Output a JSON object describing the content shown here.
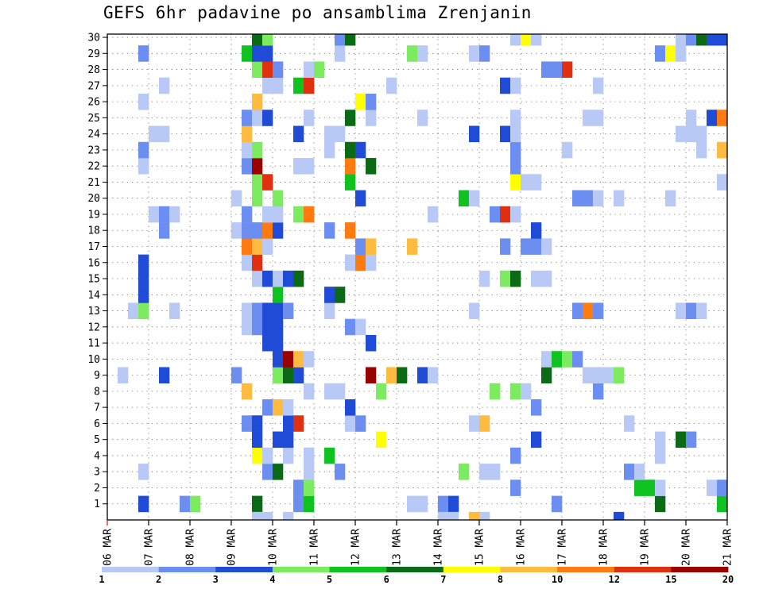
{
  "chart_data": {
    "type": "heatmap",
    "title": "GEFS 6hr padavine po ansamblima Zrenjanin",
    "x_tick_labels": [
      "06 MAR",
      "07 MAR",
      "08 MAR",
      "09 MAR",
      "10 MAR",
      "11 MAR",
      "12 MAR",
      "13 MAR",
      "14 MAR",
      "15 MAR",
      "16 MAR",
      "17 MAR",
      "18 MAR",
      "19 MAR",
      "20 MAR",
      "21 MAR"
    ],
    "y_tick_labels": [
      "1",
      "2",
      "3",
      "4",
      "5",
      "6",
      "7",
      "8",
      "9",
      "10",
      "11",
      "12",
      "13",
      "14",
      "15",
      "16",
      "17",
      "18",
      "19",
      "20",
      "21",
      "22",
      "23",
      "24",
      "25",
      "26",
      "27",
      "28",
      "29",
      "30"
    ],
    "xlim_days": [
      0,
      15
    ],
    "ylim_members": [
      0,
      30
    ],
    "grid": true,
    "colorbar": {
      "position": "bottom",
      "tick_labels": [
        "1",
        "2",
        "3",
        "4",
        "5",
        "6",
        "7",
        "8",
        "10",
        "12",
        "15",
        "20"
      ],
      "colors": [
        "#b8c9f5",
        "#6b8ef0",
        "#1f4bd6",
        "#7deb5f",
        "#0fc21f",
        "#0a6a16",
        "#ffff00",
        "#ffbb40",
        "#ff7a10",
        "#e03010",
        "#9b0000"
      ]
    },
    "cells": [
      [
        0.75,
        1,
        3
      ],
      [
        1.75,
        1,
        2
      ],
      [
        2.0,
        1,
        4
      ],
      [
        3.5,
        1,
        6
      ],
      [
        4.5,
        1,
        2
      ],
      [
        4.75,
        1,
        5
      ],
      [
        7.25,
        1,
        1
      ],
      [
        7.5,
        1,
        1
      ],
      [
        8.0,
        1,
        2
      ],
      [
        8.25,
        1,
        3
      ],
      [
        10.75,
        1,
        2
      ],
      [
        13.25,
        1,
        6
      ],
      [
        14.75,
        1,
        5
      ],
      [
        4.5,
        2,
        2
      ],
      [
        4.75,
        2,
        4
      ],
      [
        9.75,
        2,
        2
      ],
      [
        12.75,
        2,
        5
      ],
      [
        13.0,
        2,
        5
      ],
      [
        13.25,
        2,
        1
      ],
      [
        14.5,
        2,
        1
      ],
      [
        14.75,
        2,
        2
      ],
      [
        0.75,
        3,
        1
      ],
      [
        3.75,
        3,
        2
      ],
      [
        4.0,
        3,
        6
      ],
      [
        4.75,
        3,
        1
      ],
      [
        5.5,
        3,
        2
      ],
      [
        8.5,
        3,
        4
      ],
      [
        9.0,
        3,
        1
      ],
      [
        9.25,
        3,
        1
      ],
      [
        12.5,
        3,
        2
      ],
      [
        12.75,
        3,
        1
      ],
      [
        3.5,
        4,
        7
      ],
      [
        3.75,
        4,
        1
      ],
      [
        4.25,
        4,
        1
      ],
      [
        4.75,
        4,
        1
      ],
      [
        5.25,
        4,
        5
      ],
      [
        9.75,
        4,
        2
      ],
      [
        13.25,
        4,
        1
      ],
      [
        3.5,
        5,
        3
      ],
      [
        4.0,
        5,
        3
      ],
      [
        4.25,
        5,
        3
      ],
      [
        6.5,
        5,
        7
      ],
      [
        10.25,
        5,
        3
      ],
      [
        13.25,
        5,
        1
      ],
      [
        13.75,
        5,
        6
      ],
      [
        14.0,
        5,
        2
      ],
      [
        3.25,
        6,
        2
      ],
      [
        3.5,
        6,
        3
      ],
      [
        4.25,
        6,
        3
      ],
      [
        4.5,
        6,
        10
      ],
      [
        5.75,
        6,
        1
      ],
      [
        6.0,
        6,
        2
      ],
      [
        8.75,
        6,
        1
      ],
      [
        9.0,
        6,
        8
      ],
      [
        12.5,
        6,
        1
      ],
      [
        3.75,
        7,
        2
      ],
      [
        4.0,
        7,
        8
      ],
      [
        4.25,
        7,
        1
      ],
      [
        5.75,
        7,
        3
      ],
      [
        10.25,
        7,
        2
      ],
      [
        3.25,
        8,
        8
      ],
      [
        4.75,
        8,
        1
      ],
      [
        5.25,
        8,
        1
      ],
      [
        5.5,
        8,
        1
      ],
      [
        6.5,
        8,
        4
      ],
      [
        9.25,
        8,
        4
      ],
      [
        9.75,
        8,
        4
      ],
      [
        10.0,
        8,
        1
      ],
      [
        11.75,
        8,
        2
      ],
      [
        0.25,
        9,
        1
      ],
      [
        1.25,
        9,
        3
      ],
      [
        3.0,
        9,
        2
      ],
      [
        4.0,
        9,
        4
      ],
      [
        4.25,
        9,
        6
      ],
      [
        4.5,
        9,
        3
      ],
      [
        6.25,
        9,
        11
      ],
      [
        6.75,
        9,
        8
      ],
      [
        7.0,
        9,
        6
      ],
      [
        7.5,
        9,
        3
      ],
      [
        7.75,
        9,
        1
      ],
      [
        10.5,
        9,
        6
      ],
      [
        11.5,
        9,
        1
      ],
      [
        11.75,
        9,
        1
      ],
      [
        12.0,
        9,
        1
      ],
      [
        12.25,
        9,
        4
      ],
      [
        4.0,
        10,
        3
      ],
      [
        4.25,
        10,
        11
      ],
      [
        4.5,
        10,
        8
      ],
      [
        4.75,
        10,
        1
      ],
      [
        10.5,
        10,
        1
      ],
      [
        10.75,
        10,
        5
      ],
      [
        11.0,
        10,
        4
      ],
      [
        11.25,
        10,
        2
      ],
      [
        3.75,
        11,
        3
      ],
      [
        4.0,
        11,
        3
      ],
      [
        6.25,
        11,
        3
      ],
      [
        3.25,
        12,
        1
      ],
      [
        3.5,
        12,
        2
      ],
      [
        3.75,
        12,
        3
      ],
      [
        4.0,
        12,
        3
      ],
      [
        5.75,
        12,
        2
      ],
      [
        6.0,
        12,
        1
      ],
      [
        0.5,
        13,
        1
      ],
      [
        0.75,
        13,
        4
      ],
      [
        1.5,
        13,
        1
      ],
      [
        3.25,
        13,
        1
      ],
      [
        3.5,
        13,
        2
      ],
      [
        3.75,
        13,
        3
      ],
      [
        4.0,
        13,
        3
      ],
      [
        4.25,
        13,
        2
      ],
      [
        5.25,
        13,
        1
      ],
      [
        8.75,
        13,
        1
      ],
      [
        11.25,
        13,
        2
      ],
      [
        11.5,
        13,
        9
      ],
      [
        11.75,
        13,
        2
      ],
      [
        13.75,
        13,
        1
      ],
      [
        14.0,
        13,
        2
      ],
      [
        14.25,
        13,
        1
      ],
      [
        0.75,
        14,
        3
      ],
      [
        4.0,
        14,
        5
      ],
      [
        5.25,
        14,
        3
      ],
      [
        5.5,
        14,
        6
      ],
      [
        0.75,
        15,
        3
      ],
      [
        3.5,
        15,
        1
      ],
      [
        3.75,
        15,
        3
      ],
      [
        4.0,
        15,
        1
      ],
      [
        4.25,
        15,
        3
      ],
      [
        4.5,
        15,
        6
      ],
      [
        9.0,
        15,
        1
      ],
      [
        9.5,
        15,
        4
      ],
      [
        9.75,
        15,
        6
      ],
      [
        10.25,
        15,
        1
      ],
      [
        10.5,
        15,
        1
      ],
      [
        0.75,
        16,
        3
      ],
      [
        3.25,
        16,
        1
      ],
      [
        3.5,
        16,
        10
      ],
      [
        5.75,
        16,
        1
      ],
      [
        6.0,
        16,
        9
      ],
      [
        6.25,
        16,
        1
      ],
      [
        3.25,
        17,
        9
      ],
      [
        3.5,
        17,
        8
      ],
      [
        3.75,
        17,
        1
      ],
      [
        6.0,
        17,
        2
      ],
      [
        6.25,
        17,
        8
      ],
      [
        7.25,
        17,
        8
      ],
      [
        9.5,
        17,
        2
      ],
      [
        10.0,
        17,
        2
      ],
      [
        10.25,
        17,
        2
      ],
      [
        10.5,
        17,
        1
      ],
      [
        1.25,
        18,
        2
      ],
      [
        3.0,
        18,
        1
      ],
      [
        3.25,
        18,
        2
      ],
      [
        3.5,
        18,
        2
      ],
      [
        3.75,
        18,
        9
      ],
      [
        4.0,
        18,
        3
      ],
      [
        5.25,
        18,
        2
      ],
      [
        5.75,
        18,
        9
      ],
      [
        10.25,
        18,
        3
      ],
      [
        1.0,
        19,
        1
      ],
      [
        1.25,
        19,
        2
      ],
      [
        1.5,
        19,
        1
      ],
      [
        3.25,
        19,
        2
      ],
      [
        3.75,
        19,
        1
      ],
      [
        4.0,
        19,
        1
      ],
      [
        4.5,
        19,
        4
      ],
      [
        4.75,
        19,
        9
      ],
      [
        7.75,
        19,
        1
      ],
      [
        9.25,
        19,
        2
      ],
      [
        9.5,
        19,
        10
      ],
      [
        9.75,
        19,
        1
      ],
      [
        3.0,
        20,
        1
      ],
      [
        3.5,
        20,
        4
      ],
      [
        4.0,
        20,
        4
      ],
      [
        6.0,
        20,
        3
      ],
      [
        8.5,
        20,
        5
      ],
      [
        8.75,
        20,
        1
      ],
      [
        11.25,
        20,
        2
      ],
      [
        11.5,
        20,
        2
      ],
      [
        11.75,
        20,
        1
      ],
      [
        12.25,
        20,
        1
      ],
      [
        13.5,
        20,
        1
      ],
      [
        3.5,
        21,
        4
      ],
      [
        3.75,
        21,
        10
      ],
      [
        5.75,
        21,
        5
      ],
      [
        9.75,
        21,
        7
      ],
      [
        10.0,
        21,
        1
      ],
      [
        10.25,
        21,
        1
      ],
      [
        14.75,
        21,
        1
      ],
      [
        0.75,
        22,
        1
      ],
      [
        3.25,
        22,
        2
      ],
      [
        3.5,
        22,
        11
      ],
      [
        4.5,
        22,
        1
      ],
      [
        4.75,
        22,
        1
      ],
      [
        5.75,
        22,
        9
      ],
      [
        6.25,
        22,
        6
      ],
      [
        9.75,
        22,
        2
      ],
      [
        0.75,
        23,
        2
      ],
      [
        3.25,
        23,
        1
      ],
      [
        3.5,
        23,
        4
      ],
      [
        5.25,
        23,
        1
      ],
      [
        5.75,
        23,
        6
      ],
      [
        6.0,
        23,
        3
      ],
      [
        9.75,
        23,
        2
      ],
      [
        11.0,
        23,
        1
      ],
      [
        14.25,
        23,
        1
      ],
      [
        14.75,
        23,
        8
      ],
      [
        1.0,
        24,
        1
      ],
      [
        1.25,
        24,
        1
      ],
      [
        3.25,
        24,
        8
      ],
      [
        4.5,
        24,
        3
      ],
      [
        5.25,
        24,
        1
      ],
      [
        5.5,
        24,
        1
      ],
      [
        8.75,
        24,
        3
      ],
      [
        9.5,
        24,
        3
      ],
      [
        9.75,
        24,
        1
      ],
      [
        13.75,
        24,
        1
      ],
      [
        14.0,
        24,
        1
      ],
      [
        14.25,
        24,
        1
      ],
      [
        3.25,
        25,
        2
      ],
      [
        3.5,
        25,
        1
      ],
      [
        3.75,
        25,
        3
      ],
      [
        4.75,
        25,
        1
      ],
      [
        5.75,
        25,
        6
      ],
      [
        6.25,
        25,
        1
      ],
      [
        7.5,
        25,
        1
      ],
      [
        9.75,
        25,
        1
      ],
      [
        11.5,
        25,
        1
      ],
      [
        11.75,
        25,
        1
      ],
      [
        14.0,
        25,
        1
      ],
      [
        14.5,
        25,
        3
      ],
      [
        14.75,
        25,
        9
      ],
      [
        0.75,
        26,
        1
      ],
      [
        3.5,
        26,
        8
      ],
      [
        6.0,
        26,
        7
      ],
      [
        6.25,
        26,
        2
      ],
      [
        1.25,
        27,
        1
      ],
      [
        3.75,
        27,
        1
      ],
      [
        4.0,
        27,
        1
      ],
      [
        4.5,
        27,
        5
      ],
      [
        4.75,
        27,
        10
      ],
      [
        6.75,
        27,
        1
      ],
      [
        9.5,
        27,
        3
      ],
      [
        9.75,
        27,
        1
      ],
      [
        11.75,
        27,
        1
      ],
      [
        3.5,
        28,
        4
      ],
      [
        3.75,
        28,
        10
      ],
      [
        4.0,
        28,
        2
      ],
      [
        4.75,
        28,
        1
      ],
      [
        5.0,
        28,
        4
      ],
      [
        10.5,
        28,
        2
      ],
      [
        10.75,
        28,
        2
      ],
      [
        11.0,
        28,
        10
      ],
      [
        0.75,
        29,
        2
      ],
      [
        3.25,
        29,
        5
      ],
      [
        3.5,
        29,
        3
      ],
      [
        3.75,
        29,
        3
      ],
      [
        5.5,
        29,
        1
      ],
      [
        7.25,
        29,
        4
      ],
      [
        7.5,
        29,
        1
      ],
      [
        8.75,
        29,
        1
      ],
      [
        9.0,
        29,
        2
      ],
      [
        13.25,
        29,
        2
      ],
      [
        13.5,
        29,
        7
      ],
      [
        13.75,
        29,
        1
      ],
      [
        3.5,
        30,
        6
      ],
      [
        3.75,
        30,
        4
      ],
      [
        5.5,
        30,
        2
      ],
      [
        5.75,
        30,
        6
      ],
      [
        9.75,
        30,
        1
      ],
      [
        10.0,
        30,
        7
      ],
      [
        10.25,
        30,
        1
      ],
      [
        13.75,
        30,
        1
      ],
      [
        14.0,
        30,
        2
      ],
      [
        14.25,
        30,
        6
      ],
      [
        14.5,
        30,
        3
      ],
      [
        14.75,
        30,
        3
      ],
      [
        3.5,
        0,
        1
      ],
      [
        3.75,
        0,
        1
      ],
      [
        4.25,
        0,
        1
      ],
      [
        8.0,
        0,
        1
      ],
      [
        8.25,
        0,
        1
      ],
      [
        8.75,
        0,
        8
      ],
      [
        9.0,
        0,
        1
      ],
      [
        12.25,
        0,
        3
      ]
    ]
  }
}
